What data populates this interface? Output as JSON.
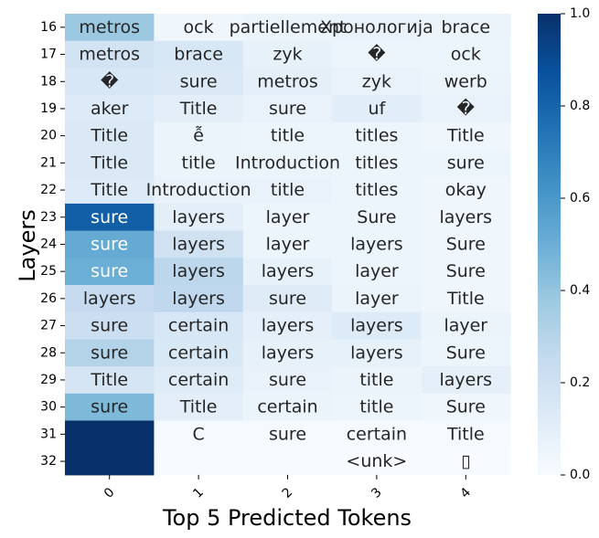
{
  "chart_data": {
    "type": "heatmap",
    "xlabel": "Top 5 Predicted Tokens",
    "ylabel": "Layers",
    "x_ticks": [
      "0",
      "1",
      "2",
      "3",
      "4"
    ],
    "y_ticks": [
      "16",
      "17",
      "18",
      "19",
      "20",
      "21",
      "22",
      "23",
      "24",
      "25",
      "26",
      "27",
      "28",
      "29",
      "30",
      "31",
      "32"
    ],
    "colormap": "Blues",
    "vmin": 0.0,
    "vmax": 1.0,
    "colorbar_ticks": [
      "0.0",
      "0.2",
      "0.4",
      "0.6",
      "0.8",
      "1.0"
    ],
    "tokens": [
      [
        "metros",
        "ock",
        "partiellement",
        "Хронологија",
        "brace"
      ],
      [
        "metros",
        "brace",
        "zyk",
        "�",
        "ock"
      ],
      [
        "�",
        "sure",
        "metros",
        "zyk",
        "werb"
      ],
      [
        "aker",
        "Title",
        "sure",
        "uf",
        "�"
      ],
      [
        "Title",
        "ễ",
        "title",
        "titles",
        "Title"
      ],
      [
        "Title",
        "title",
        "Introduction",
        "titles",
        "sure"
      ],
      [
        "Title",
        "Introduction",
        "title",
        "titles",
        "okay"
      ],
      [
        "sure",
        "layers",
        "layer",
        "Sure",
        "layers"
      ],
      [
        "sure",
        "layers",
        "layer",
        "layers",
        "Sure"
      ],
      [
        "sure",
        "layers",
        "layers",
        "layer",
        "Sure"
      ],
      [
        "layers",
        "layers",
        "sure",
        "layer",
        "Title"
      ],
      [
        "sure",
        "certain",
        "layers",
        "layers",
        "layer"
      ],
      [
        "sure",
        "certain",
        "layers",
        "layers",
        "Sure"
      ],
      [
        "Title",
        "certain",
        "sure",
        "title",
        "layers"
      ],
      [
        "sure",
        "Title",
        "certain",
        "title",
        "Sure"
      ],
      [
        "",
        "C",
        "sure",
        "certain",
        "Title"
      ],
      [
        "",
        "",
        "",
        "<unk>",
        "▯"
      ]
    ],
    "values": [
      [
        0.38,
        0.04,
        0.06,
        0.07,
        0.06
      ],
      [
        0.19,
        0.16,
        0.08,
        0.05,
        0.05
      ],
      [
        0.16,
        0.14,
        0.09,
        0.07,
        0.06
      ],
      [
        0.13,
        0.1,
        0.07,
        0.11,
        0.07
      ],
      [
        0.14,
        0.06,
        0.05,
        0.05,
        0.04
      ],
      [
        0.14,
        0.06,
        0.06,
        0.05,
        0.05
      ],
      [
        0.13,
        0.07,
        0.07,
        0.05,
        0.04
      ],
      [
        0.82,
        0.1,
        0.05,
        0.05,
        0.04
      ],
      [
        0.52,
        0.2,
        0.05,
        0.05,
        0.04
      ],
      [
        0.5,
        0.28,
        0.08,
        0.05,
        0.04
      ],
      [
        0.25,
        0.27,
        0.12,
        0.06,
        0.04
      ],
      [
        0.22,
        0.16,
        0.09,
        0.13,
        0.06
      ],
      [
        0.31,
        0.15,
        0.08,
        0.08,
        0.05
      ],
      [
        0.17,
        0.12,
        0.07,
        0.06,
        0.09
      ],
      [
        0.45,
        0.1,
        0.06,
        0.05,
        0.04
      ],
      [
        1.0,
        0.01,
        0.01,
        0.01,
        0.01
      ],
      [
        1.0,
        0.0,
        0.0,
        0.0,
        0.0
      ]
    ]
  }
}
